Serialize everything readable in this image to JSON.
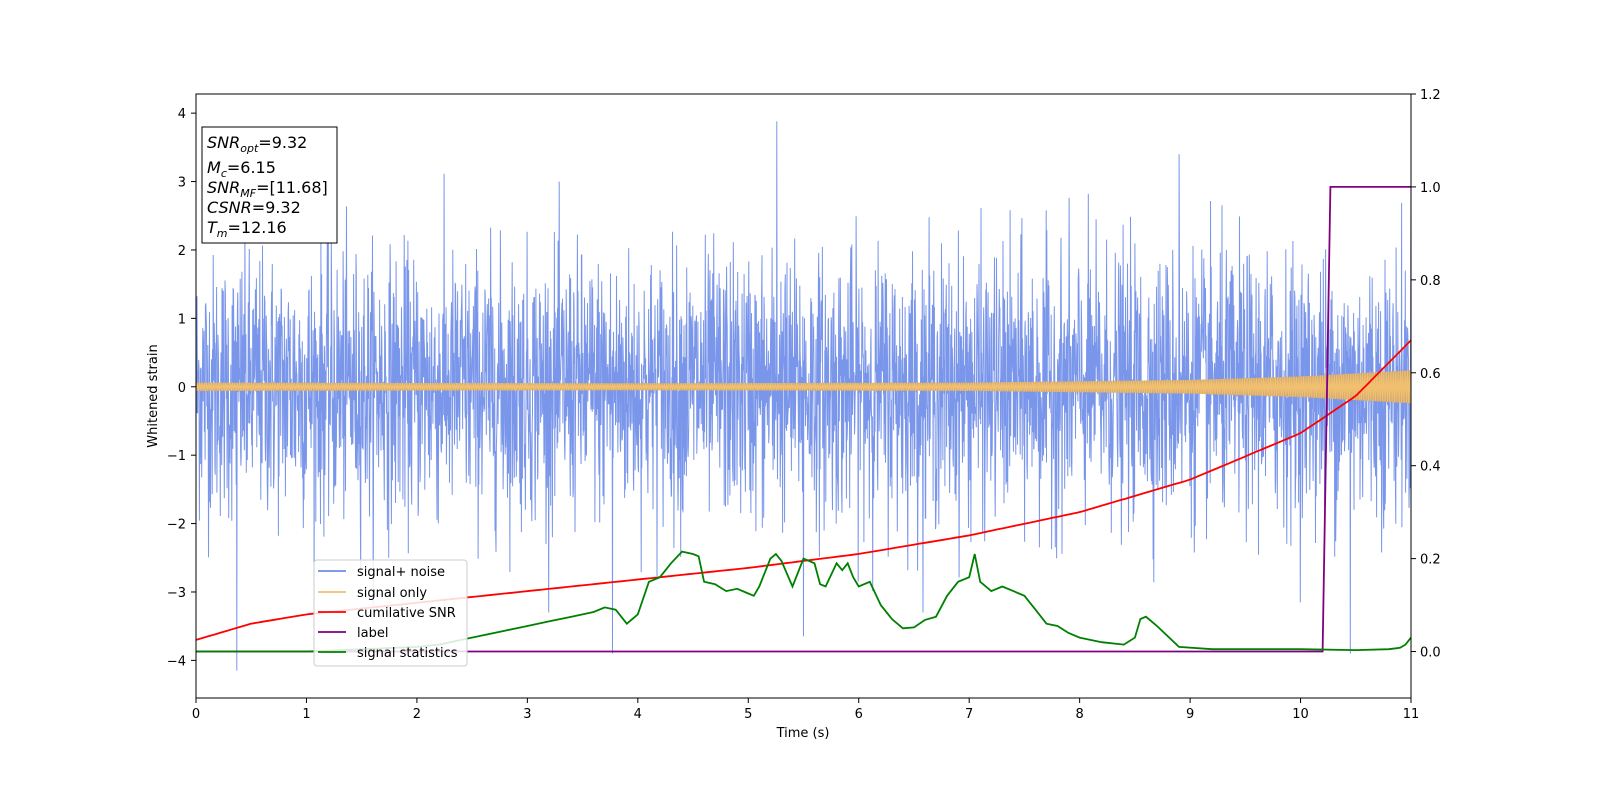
{
  "chart_data": {
    "type": "line",
    "xlabel": "Time (s)",
    "ylabel": "Whitened strain",
    "xlim": [
      0,
      11
    ],
    "ylim_left": [
      -4.55,
      4.28
    ],
    "ylim_right": [
      -0.1,
      1.2
    ],
    "x_ticks": [
      "0",
      "1",
      "2",
      "3",
      "4",
      "5",
      "6",
      "7",
      "8",
      "9",
      "10",
      "11"
    ],
    "y_ticks_left": [
      "4",
      "3",
      "2",
      "1",
      "0",
      "−1",
      "−2",
      "−3",
      "−4"
    ],
    "y_ticks_right": [
      "1.2",
      "1.0",
      "0.8",
      "0.6",
      "0.4",
      "0.2",
      "0.0"
    ],
    "grid": false,
    "legend_position": "lower-left",
    "colors": {
      "noise": "#6b8be8",
      "signal": "#f0c070",
      "signal_overlap": "#c29a6a",
      "cumulative_snr": "#ff0000",
      "label": "#800080",
      "statistics": "#008000"
    },
    "info_box": {
      "snr_opt": {
        "base": "SNR",
        "sub": "opt",
        "value": "=9.32"
      },
      "mc": {
        "base": "M",
        "sub": "c",
        "value": "=6.15"
      },
      "snr_mf": {
        "base": "SNR",
        "sub": "MF",
        "value": "=[11.68]"
      },
      "csnr": {
        "base": "CSNR",
        "value": "=9.32"
      },
      "tm": {
        "base": "T",
        "sub": "m",
        "value": "=12.16"
      }
    },
    "series": [
      {
        "name": "signal+ noise",
        "axis": "left",
        "noise_std": 1.0,
        "extreme_points": [
          [
            0.37,
            -4.15
          ],
          [
            5.26,
            3.88
          ],
          [
            3.77,
            -3.9
          ],
          [
            5.5,
            -3.65
          ],
          [
            8.9,
            3.4
          ],
          [
            10.45,
            -3.9
          ],
          [
            11.0,
            2.95
          ]
        ]
      },
      {
        "name": "signal only",
        "axis": "left",
        "amplitude": [
          [
            0,
            0.06
          ],
          [
            4,
            0.05
          ],
          [
            7,
            0.06
          ],
          [
            9,
            0.1
          ],
          [
            10,
            0.15
          ],
          [
            11,
            0.24
          ]
        ]
      },
      {
        "name": "cumilative SNR",
        "axis": "right",
        "x": [
          0,
          0.5,
          1,
          2,
          3,
          4,
          5,
          6,
          7,
          8,
          9,
          10,
          10.5,
          11
        ],
        "y": [
          0.025,
          0.06,
          0.08,
          0.105,
          0.13,
          0.155,
          0.18,
          0.21,
          0.25,
          0.3,
          0.37,
          0.47,
          0.55,
          0.67
        ]
      },
      {
        "name": "label",
        "axis": "right",
        "x": [
          0,
          10.2,
          10.27,
          11
        ],
        "y": [
          0.0,
          0.0,
          1.0,
          1.0
        ]
      },
      {
        "name": "signal statistics",
        "axis": "right",
        "x": [
          0,
          1.0,
          2.0,
          2.2,
          2.4,
          2.6,
          2.8,
          3.0,
          3.2,
          3.4,
          3.6,
          3.7,
          3.8,
          3.9,
          4.0,
          4.1,
          4.2,
          4.3,
          4.4,
          4.5,
          4.55,
          4.6,
          4.7,
          4.8,
          4.9,
          5.0,
          5.05,
          5.1,
          5.2,
          5.25,
          5.3,
          5.4,
          5.5,
          5.6,
          5.65,
          5.7,
          5.8,
          5.85,
          5.9,
          5.95,
          6.0,
          6.1,
          6.2,
          6.3,
          6.4,
          6.5,
          6.6,
          6.7,
          6.8,
          6.9,
          7.0,
          7.05,
          7.1,
          7.2,
          7.3,
          7.4,
          7.5,
          7.6,
          7.7,
          7.8,
          7.9,
          8.0,
          8.2,
          8.4,
          8.5,
          8.55,
          8.6,
          8.7,
          8.9,
          9.2,
          10.0,
          10.5,
          10.8,
          10.9,
          10.95,
          11.0
        ],
        "y": [
          0.0,
          0.0,
          0.01,
          0.015,
          0.025,
          0.035,
          0.045,
          0.055,
          0.065,
          0.075,
          0.085,
          0.095,
          0.09,
          0.06,
          0.08,
          0.15,
          0.16,
          0.19,
          0.215,
          0.21,
          0.205,
          0.15,
          0.145,
          0.13,
          0.135,
          0.125,
          0.12,
          0.14,
          0.2,
          0.21,
          0.195,
          0.14,
          0.2,
          0.19,
          0.145,
          0.14,
          0.19,
          0.175,
          0.19,
          0.16,
          0.14,
          0.15,
          0.1,
          0.07,
          0.05,
          0.052,
          0.068,
          0.075,
          0.12,
          0.15,
          0.16,
          0.21,
          0.15,
          0.13,
          0.14,
          0.13,
          0.12,
          0.09,
          0.06,
          0.055,
          0.04,
          0.03,
          0.02,
          0.015,
          0.03,
          0.07,
          0.075,
          0.055,
          0.01,
          0.005,
          0.005,
          0.003,
          0.005,
          0.008,
          0.015,
          0.03
        ]
      }
    ]
  }
}
